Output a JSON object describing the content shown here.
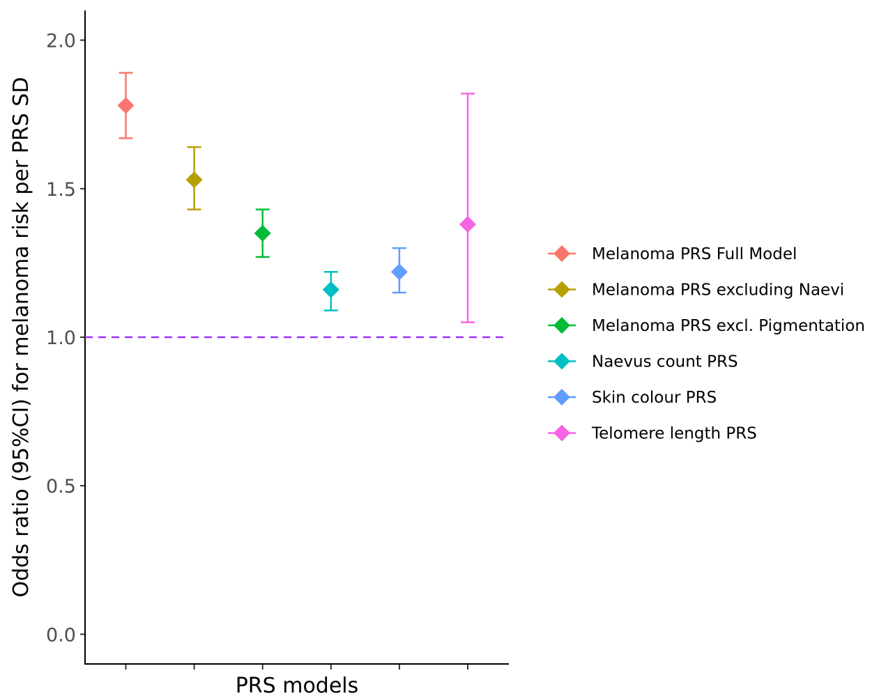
{
  "chart_data": {
    "type": "scatter",
    "title": "",
    "xlabel": "PRS models",
    "ylabel": "Odds ratio (95%CI) for melanoma risk per PRS SD",
    "ylim": [
      -0.1,
      2.1
    ],
    "yticks": [
      0.0,
      0.5,
      1.0,
      1.5,
      2.0
    ],
    "ytick_labels": [
      "0.0",
      "0.5",
      "1.0",
      "1.5",
      "2.0"
    ],
    "reference_line": {
      "y": 1.0,
      "color": "#9b30ff",
      "style": "dashed"
    },
    "grid": false,
    "legend_position": "right",
    "series": [
      {
        "name": "Melanoma PRS Full Model",
        "or": 1.78,
        "lower": 1.67,
        "upper": 1.89,
        "color": "#f8766d"
      },
      {
        "name": "Melanoma PRS excluding Naevi",
        "or": 1.53,
        "lower": 1.43,
        "upper": 1.64,
        "color": "#b79f00"
      },
      {
        "name": "Melanoma PRS excl. Pigmentation",
        "or": 1.35,
        "lower": 1.27,
        "upper": 1.43,
        "color": "#00ba38"
      },
      {
        "name": "Naevus count PRS",
        "or": 1.16,
        "lower": 1.09,
        "upper": 1.22,
        "color": "#00bfc4"
      },
      {
        "name": "Skin colour PRS",
        "or": 1.22,
        "lower": 1.15,
        "upper": 1.3,
        "color": "#619cff"
      },
      {
        "name": "Telomere length PRS",
        "or": 1.38,
        "lower": 1.05,
        "upper": 1.82,
        "color": "#f564e3"
      }
    ]
  }
}
